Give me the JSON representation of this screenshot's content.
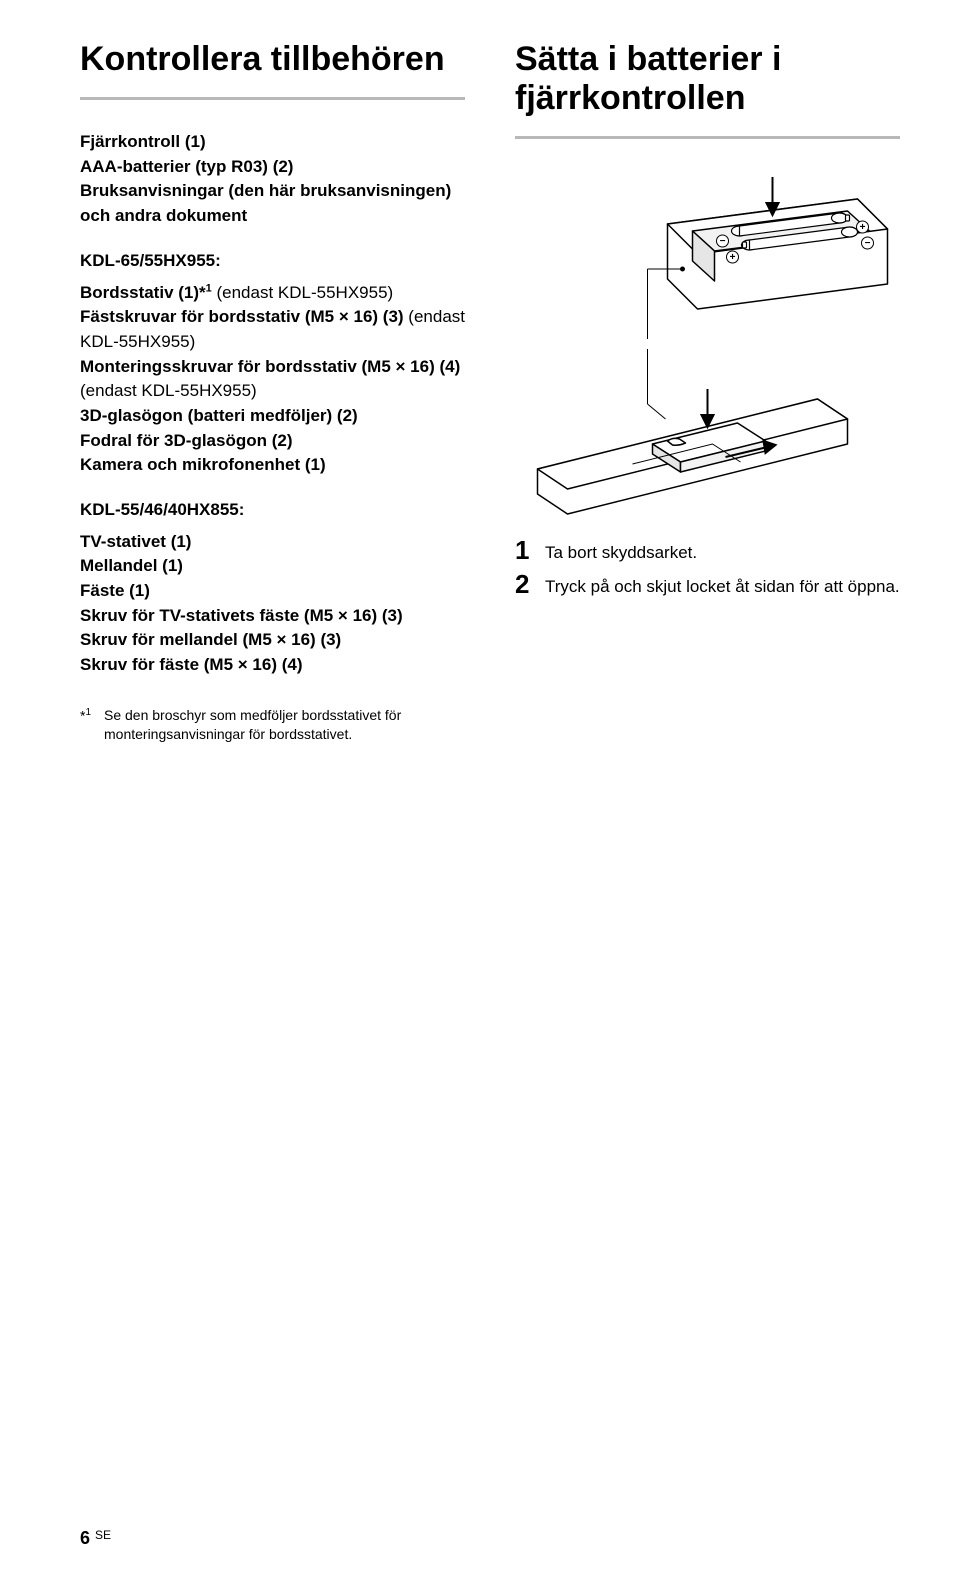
{
  "left": {
    "title": "Kontrollera tillbehören",
    "intro": "Fjärrkontroll (1)\nAAA-batterier (typ R03) (2)\nBruksanvisningar (den här bruksanvisningen) och andra dokument",
    "group1": {
      "heading": "KDL-65/55HX955:",
      "items": [
        {
          "bold": "Bordsstativ (1)*",
          "sup": "1",
          "light": " (endast KDL-55HX955)"
        },
        {
          "bold": "Fästskruvar för bordsstativ (M5 × 16) (3)",
          "light": " (endast KDL-55HX955)"
        },
        {
          "bold": "Monteringsskruvar för bordsstativ (M5 × 16) (4)",
          "light": " (endast KDL-55HX955)"
        },
        {
          "bold": "3D-glasögon (batteri medföljer) (2)",
          "light": ""
        },
        {
          "bold": "Fodral för 3D-glasögon (2)",
          "light": ""
        },
        {
          "bold": "Kamera och mikrofonenhet (1)",
          "light": ""
        }
      ]
    },
    "group2": {
      "heading": "KDL-55/46/40HX855:",
      "items": [
        {
          "bold": "TV-stativet (1)",
          "light": ""
        },
        {
          "bold": "Mellandel (1)",
          "light": ""
        },
        {
          "bold": "Fäste (1)",
          "light": ""
        },
        {
          "bold": "Skruv för TV-stativets fäste (M5 × 16) (3)",
          "light": ""
        },
        {
          "bold": "Skruv för mellandel (M5 × 16) (3)",
          "light": ""
        },
        {
          "bold": "Skruv för fäste (M5 × 16) (4)",
          "light": ""
        }
      ]
    },
    "footnote": {
      "marker": "*",
      "sup": "1",
      "text": "Se den broschyr som medföljer bordsstativet för monteringsanvisningar för bordsstativet."
    }
  },
  "right": {
    "title": "Sätta i batterier i fjärrkontrollen",
    "steps": [
      {
        "num": "1",
        "text": "Ta bort skyddsarket."
      },
      {
        "num": "2",
        "text": "Tryck på och skjut locket åt sidan för att öppna."
      }
    ]
  },
  "footer": {
    "page": "6",
    "lang": "SE"
  },
  "colors": {
    "rule": "#b8b8b8",
    "text": "#000000",
    "stroke": "#000000",
    "fill_light": "#ffffff",
    "fill_gray": "#e6e6e6"
  }
}
